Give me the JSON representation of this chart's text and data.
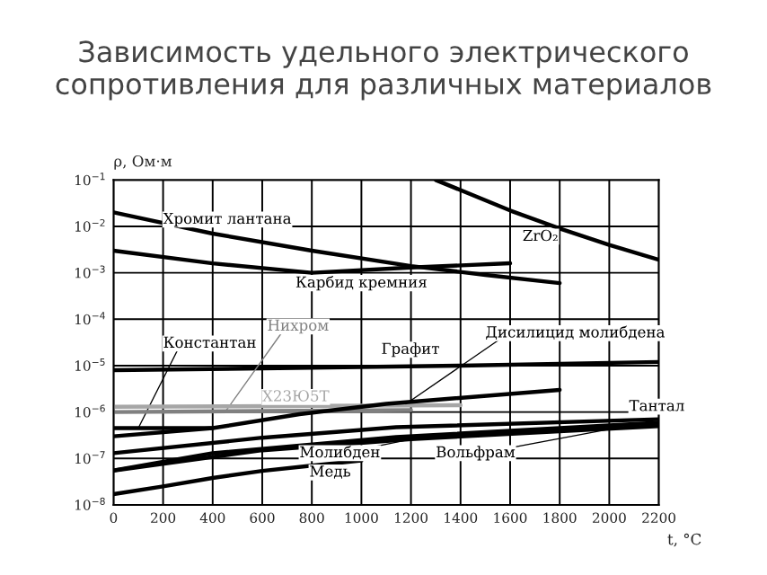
{
  "chart_data": {
    "type": "line",
    "title": "Зависимость удельного электрического\nсопротивления для различных материалов",
    "ylabel": "ρ, Ом·м",
    "xlabel": "t, °C",
    "log": "y",
    "grid": true,
    "legend": false,
    "marker": "none",
    "line_style": "solid",
    "xlim": [
      0,
      2200
    ],
    "xticks": [
      0,
      200,
      400,
      600,
      800,
      1000,
      1200,
      1400,
      1600,
      1800,
      2000,
      2200
    ],
    "ylim": [
      1e-08,
      0.1
    ],
    "yticks": [
      {
        "value": 1e-08,
        "label": "10$^{−8}$"
      },
      {
        "value": 1e-07,
        "label": "10$^{−7}$"
      },
      {
        "value": 1e-06,
        "label": "10$^{−6}$"
      },
      {
        "value": 1e-05,
        "label": "10$^{−5}$"
      },
      {
        "value": 0.0001,
        "label": "10$^{−4}$"
      },
      {
        "value": 0.001,
        "label": "10$^{−3}$"
      },
      {
        "value": 0.01,
        "label": "10$^{−2}$"
      },
      {
        "value": 0.1,
        "label": "10$^{−1}$"
      }
    ],
    "series": [
      {
        "name": "Хромит лантана",
        "color": "#000000",
        "x": [
          0,
          400,
          800,
          1200,
          1500,
          1800
        ],
        "values": [
          0.02,
          0.007,
          0.003,
          0.0014,
          0.0009,
          0.0006
        ]
      },
      {
        "name": "ZrO₂",
        "color": "#000000",
        "x": [
          1300,
          1600,
          1800,
          2000,
          2200
        ],
        "values": [
          0.1,
          0.022,
          0.009,
          0.004,
          0.0019
        ]
      },
      {
        "name": "Карбид кремния",
        "color": "#000000",
        "x": [
          0,
          400,
          800,
          1200,
          1600
        ],
        "values": [
          0.003,
          0.0016,
          0.001,
          0.0013,
          0.0016
        ]
      },
      {
        "name": "Графит",
        "color": "#000000",
        "x": [
          0,
          800,
          1400,
          2200
        ],
        "values": [
          8e-06,
          9e-06,
          1e-05,
          1.2e-05
        ]
      },
      {
        "name": "Константан",
        "color": "#000000",
        "x": [
          0,
          400
        ],
        "values": [
          4.5e-07,
          4.5e-07
        ]
      },
      {
        "name": "Нихром",
        "color": "#808080",
        "x": [
          0,
          1200
        ],
        "values": [
          1e-06,
          1.1e-06
        ]
      },
      {
        "name": "Х23Ю5Т",
        "color": "#a6a6a6",
        "x": [
          0,
          1400
        ],
        "values": [
          1.3e-06,
          1.4e-06
        ]
      },
      {
        "name": "Дисилицид молибдена",
        "color": "#000000",
        "x": [
          0,
          400,
          750,
          1100,
          1800
        ],
        "values": [
          3e-07,
          4.5e-07,
          9e-07,
          1.5e-06,
          3e-06
        ]
      },
      {
        "name": "Тантал",
        "color": "#000000",
        "x": [
          0,
          600,
          1140,
          2200
        ],
        "values": [
          1.3e-07,
          2.8e-07,
          4.7e-07,
          7e-07
        ]
      },
      {
        "name": "Молибден",
        "color": "#000000",
        "x": [
          0,
          400,
          1140,
          2200
        ],
        "values": [
          5.5e-08,
          1.3e-07,
          2.9e-07,
          5.9e-07
        ]
      },
      {
        "name": "Вольфрам",
        "color": "#000000",
        "x": [
          0,
          600,
          1200,
          2200
        ],
        "values": [
          5.5e-08,
          1.5e-07,
          2.6e-07,
          5e-07
        ]
      },
      {
        "name": "Медь",
        "color": "#000000",
        "x": [
          0,
          200,
          400,
          600,
          800,
          1000
        ],
        "values": [
          1.7e-08,
          2.5e-08,
          3.8e-08,
          5.4e-08,
          7e-08,
          9e-08
        ]
      }
    ]
  }
}
